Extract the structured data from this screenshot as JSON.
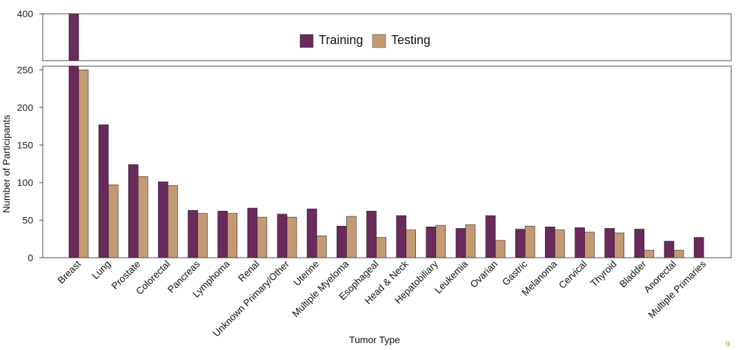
{
  "chart_data": {
    "type": "bar",
    "title": "",
    "xlabel": "Tumor Type",
    "ylabel": "Number of Participants",
    "categories": [
      "Breast",
      "Lung",
      "Prostate",
      "Colorectal",
      "Pancreas",
      "Lymphoma",
      "Renal",
      "Unknown Primary/Other",
      "Uterine",
      "Multiple Myeloma",
      "Esophageal",
      "Head & Neck",
      "Hepatobiliary",
      "Leukemia",
      "Ovarian",
      "Gastric",
      "Melanoma",
      "Cervical",
      "Thyroid",
      "Bladder",
      "Anorectal",
      "Multiple Primaries"
    ],
    "series": [
      {
        "name": "Training",
        "color": "#6a2a5c",
        "values": [
          410,
          177,
          124,
          101,
          63,
          62,
          66,
          58,
          65,
          42,
          62,
          56,
          41,
          39,
          56,
          38,
          41,
          40,
          39,
          38,
          22,
          27
        ]
      },
      {
        "name": "Testing",
        "color": "#c49a74",
        "values": [
          250,
          97,
          108,
          96,
          59,
          59,
          54,
          54,
          29,
          55,
          27,
          37,
          43,
          44,
          23,
          42,
          37,
          34,
          33,
          10,
          10,
          0
        ]
      }
    ],
    "broken_axis": true,
    "yticks_lower": [
      0,
      50,
      100,
      150,
      200,
      250
    ],
    "yticks_upper": [
      400
    ],
    "tick_labels_lower": [
      "0",
      "50",
      "100",
      "150",
      "200",
      "250"
    ],
    "tick_labels_upper": [
      "400"
    ],
    "ylim_lower": [
      0,
      255
    ],
    "ylim_upper": [
      345,
      400
    ],
    "legend_position": "top-center",
    "grid": false
  },
  "page_number": "9"
}
